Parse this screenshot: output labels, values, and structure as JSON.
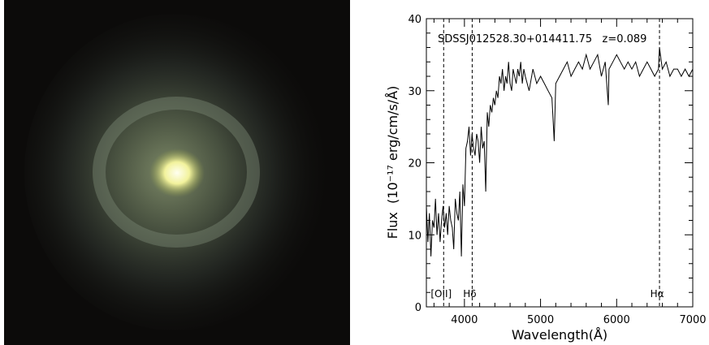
{
  "image_panel": {
    "subject": "galaxy-image",
    "colors": {
      "background": "#0c0b0a",
      "core": "#f4f4a8",
      "disk": "#6f7d6a"
    }
  },
  "chart_data": {
    "type": "line",
    "title": "SDSSJ012528.30+014411.75   z=0.089",
    "xlabel": "Wavelength(Å)",
    "ylabel": "Flux  (10⁻¹⁷ erg/cm/s/Å)",
    "xlim": [
      3500,
      7000
    ],
    "ylim": [
      0,
      40
    ],
    "xticks": [
      4000,
      5000,
      6000,
      7000
    ],
    "yticks": [
      0,
      10,
      20,
      30,
      40
    ],
    "grid": false,
    "series": [
      {
        "x": [
          3500,
          3520,
          3540,
          3560,
          3580,
          3600,
          3620,
          3640,
          3660,
          3680,
          3700,
          3720,
          3740,
          3760,
          3780,
          3800,
          3820,
          3840,
          3860,
          3880,
          3900,
          3920,
          3940,
          3960,
          3980,
          4000,
          4020,
          4040,
          4060,
          4080,
          4100,
          4120,
          4140,
          4160,
          4180,
          4200,
          4220,
          4240,
          4260,
          4280,
          4300,
          4320,
          4340,
          4360,
          4380,
          4400,
          4420,
          4440,
          4460,
          4480,
          4500,
          4520,
          4540,
          4560,
          4580,
          4600,
          4620,
          4640,
          4660,
          4680,
          4700,
          4720,
          4740,
          4760,
          4780,
          4800,
          4850,
          4900,
          4950,
          5000,
          5050,
          5100,
          5150,
          5180,
          5200,
          5250,
          5300,
          5350,
          5400,
          5450,
          5500,
          5550,
          5600,
          5650,
          5700,
          5750,
          5800,
          5850,
          5890,
          5900,
          5950,
          6000,
          6050,
          6100,
          6150,
          6200,
          6250,
          6300,
          6350,
          6400,
          6450,
          6500,
          6550,
          6563,
          6600,
          6650,
          6700,
          6750,
          6800,
          6850,
          6900,
          6950,
          7000
        ],
        "y": [
          14,
          9,
          13,
          7,
          12,
          11,
          15,
          10,
          13,
          9,
          12,
          14,
          11,
          13,
          10,
          14,
          12,
          11,
          8,
          15,
          13,
          12,
          16,
          7,
          17,
          14,
          22,
          23,
          25,
          21,
          24,
          22,
          21,
          24,
          23,
          20,
          25,
          22,
          23,
          16,
          27,
          25,
          28,
          27,
          29,
          28,
          30,
          29,
          32,
          31,
          33,
          30,
          32,
          31,
          34,
          31,
          30,
          33,
          32,
          31,
          33,
          32,
          34,
          31,
          33,
          32,
          30,
          33,
          31,
          32,
          31,
          30,
          29,
          23,
          31,
          32,
          33,
          34,
          32,
          33,
          34,
          33,
          35,
          33,
          34,
          35,
          32,
          34,
          28,
          33,
          34,
          35,
          34,
          33,
          34,
          33,
          34,
          32,
          33,
          34,
          33,
          32,
          33,
          36,
          33,
          34,
          32,
          33,
          33,
          32,
          33,
          32,
          33
        ]
      }
    ],
    "vlines": [
      {
        "x": 3727,
        "label": "[OII]"
      },
      {
        "x": 4102,
        "label": "Hδ"
      },
      {
        "x": 6563,
        "label": "Hα"
      }
    ]
  }
}
